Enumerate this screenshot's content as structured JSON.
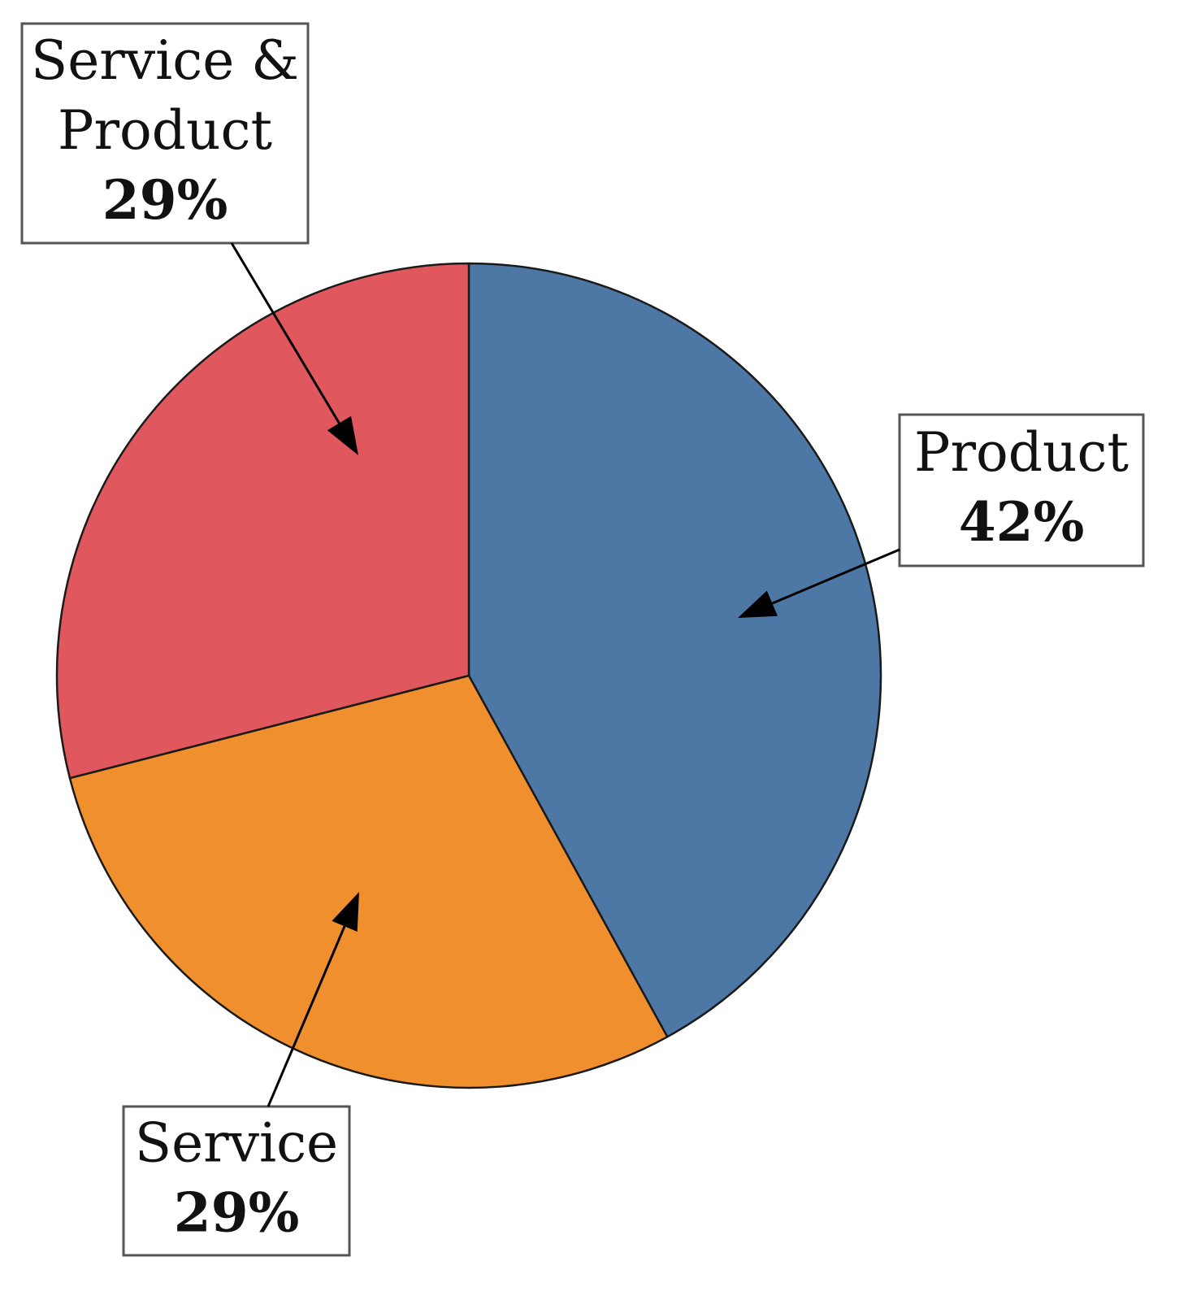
{
  "chart_data": {
    "type": "pie",
    "title": "",
    "start_angle_deg": 0,
    "direction": "clockwise",
    "series": [
      {
        "slices": [
          {
            "label_lines": [
              "Product"
            ],
            "value": 42,
            "value_label": "42%",
            "color": "#4d78a6"
          },
          {
            "label_lines": [
              "Service"
            ],
            "value": 29,
            "value_label": "29%",
            "color": "#f08f2d"
          },
          {
            "label_lines": [
              "Service &",
              "Product"
            ],
            "value": 29,
            "value_label": "29%",
            "color": "#e0575d"
          }
        ]
      }
    ],
    "legend": "none",
    "labels": "callout boxes with arrows"
  }
}
